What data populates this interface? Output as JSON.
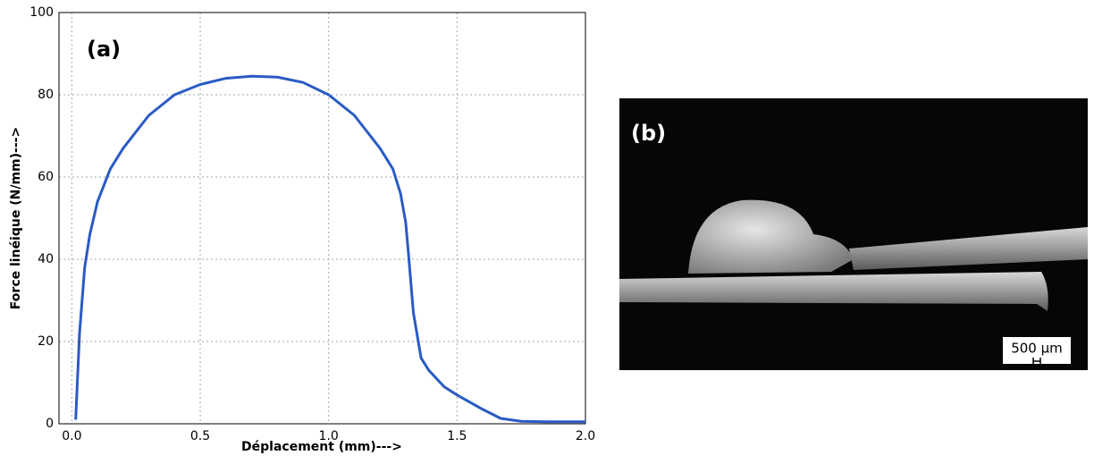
{
  "chart_data": {
    "type": "line",
    "annotation": "(a)",
    "x_label": "Déplacement (mm)--->",
    "y_label": "Force linéique (N/mm)--->",
    "x": [
      0.015,
      0.02,
      0.03,
      0.05,
      0.07,
      0.1,
      0.15,
      0.2,
      0.3,
      0.4,
      0.5,
      0.6,
      0.7,
      0.8,
      0.9,
      1.0,
      1.1,
      1.2,
      1.25,
      1.28,
      1.3,
      1.31,
      1.33,
      1.36,
      1.39,
      1.45,
      1.5,
      1.6,
      1.67,
      1.75,
      1.85,
      2.0
    ],
    "series": [
      {
        "color": "#2a5bc4",
        "values": [
          1,
          8,
          22,
          38,
          46,
          54,
          62,
          67,
          75,
          80,
          82.5,
          84,
          84.5,
          84.3,
          83,
          80,
          75,
          67,
          62,
          56,
          49,
          42,
          27,
          16,
          13,
          9,
          7,
          3.5,
          1.3,
          0.6,
          0.5,
          0.5
        ]
      }
    ],
    "xlim": [
      -0.05,
      2.0
    ],
    "ylim": [
      0,
      100
    ],
    "xticks": [
      {
        "value": 0,
        "label": "0.0"
      },
      0.5,
      {
        "value": 1,
        "label": "1.0"
      },
      1.5,
      {
        "value": 2,
        "label": "2.0"
      }
    ],
    "yticks": [
      0,
      20,
      40,
      60,
      80,
      100
    ],
    "grid": true
  },
  "photo": {
    "label": "(b)",
    "scale_bar": "500 µm"
  }
}
